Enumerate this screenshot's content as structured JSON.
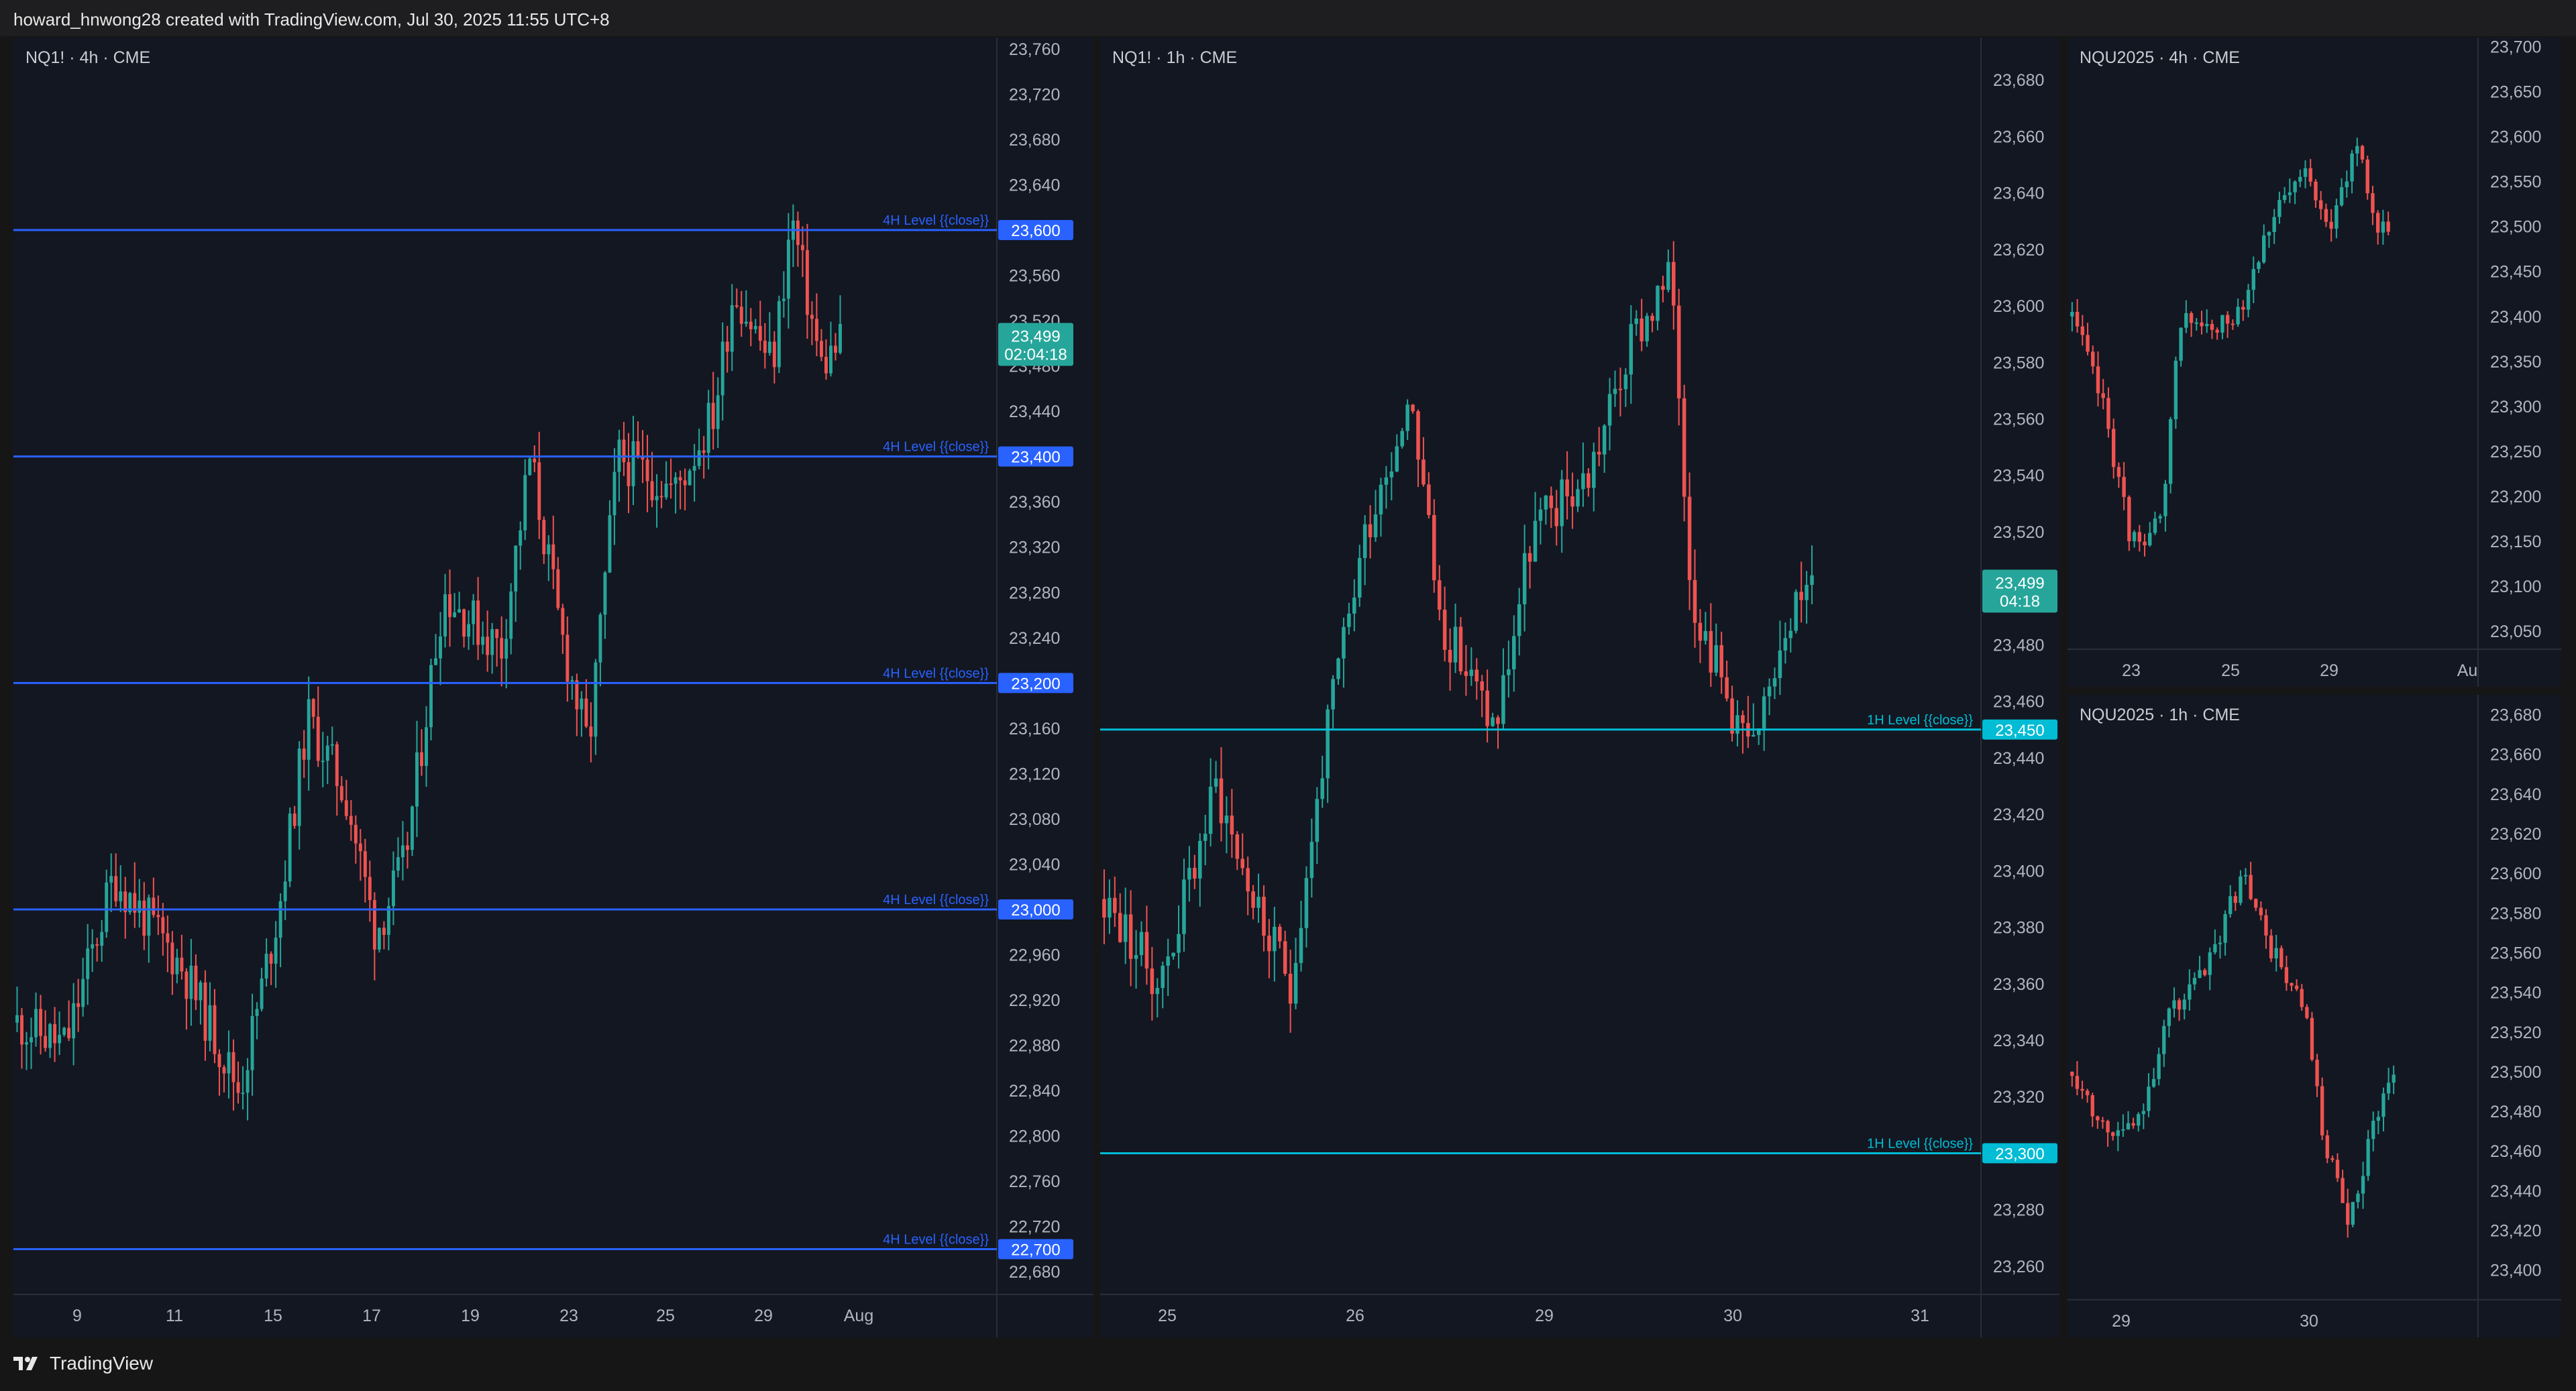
{
  "header": {
    "attribution": "howard_hnwong28 created with TradingView.com, Jul 30, 2025 11:55 UTC+8"
  },
  "footer": {
    "brand": "TradingView"
  },
  "colors": {
    "up": "#26a69a",
    "down": "#ef5350",
    "level_4h": "#2962ff",
    "level_1h": "#00bcd4",
    "axis_text": "#b2b5be"
  },
  "charts": [
    {
      "id": "main4h",
      "title": "NQ1! · 4h · CME",
      "ylim": [
        22660,
        23770
      ],
      "y_ticks": [
        "23,760",
        "23,720",
        "23,680",
        "23,640",
        "23,600",
        "23,560",
        "23,520",
        "23,480",
        "23,440",
        "23,400",
        "23,360",
        "23,320",
        "23,280",
        "23,240",
        "23,200",
        "23,160",
        "23,120",
        "23,080",
        "23,040",
        "23,000",
        "22,960",
        "22,920",
        "22,880",
        "22,840",
        "22,800",
        "22,760",
        "22,720",
        "22,680"
      ],
      "x_ticks": [
        "9",
        "11",
        "15",
        "17",
        "19",
        "23",
        "25",
        "29",
        "Aug"
      ],
      "levels": [
        {
          "value": "23,600",
          "label": "4H Level {{close}}"
        },
        {
          "value": "23,400",
          "label": "4H Level {{close}}"
        },
        {
          "value": "23,200",
          "label": "4H Level {{close}}"
        },
        {
          "value": "23,000",
          "label": "4H Level {{close}}"
        },
        {
          "value": "22,700",
          "label": "4H Level {{close}}"
        }
      ],
      "last_price": "23,499",
      "countdown": "02:04:18"
    },
    {
      "id": "main1h",
      "title": "NQ1! · 1h · CME",
      "ylim": [
        23250,
        23695
      ],
      "y_ticks": [
        "23,680",
        "23,660",
        "23,640",
        "23,620",
        "23,600",
        "23,580",
        "23,560",
        "23,540",
        "23,520",
        "23,480",
        "23,460",
        "23,440",
        "23,420",
        "23,400",
        "23,380",
        "23,360",
        "23,340",
        "23,320",
        "23,280",
        "23,260"
      ],
      "x_ticks": [
        "25",
        "26",
        "29",
        "30",
        "31"
      ],
      "levels": [
        {
          "value": "23,450",
          "label": "1H Level {{close}}"
        },
        {
          "value": "23,300",
          "label": "1H Level {{close}}"
        }
      ],
      "last_price": "23,499",
      "countdown": "04:18"
    },
    {
      "id": "nqu4h",
      "title": "NQU2025 · 4h · CME",
      "ylim": [
        23030,
        23710
      ],
      "y_ticks": [
        "23,700",
        "23,650",
        "23,600",
        "23,550",
        "23,500",
        "23,450",
        "23,400",
        "23,350",
        "23,300",
        "23,250",
        "23,200",
        "23,150",
        "23,100",
        "23,050"
      ],
      "x_ticks": [
        "23",
        "25",
        "29",
        "Au"
      ],
      "levels": []
    },
    {
      "id": "nqu1h",
      "title": "NQU2025 · 1h · CME",
      "ylim": [
        23385,
        23690
      ],
      "y_ticks": [
        "23,680",
        "23,660",
        "23,640",
        "23,620",
        "23,600",
        "23,580",
        "23,560",
        "23,540",
        "23,520",
        "23,500",
        "23,480",
        "23,460",
        "23,440",
        "23,420",
        "23,400"
      ],
      "x_ticks": [
        "29",
        "30"
      ],
      "levels": []
    }
  ]
}
